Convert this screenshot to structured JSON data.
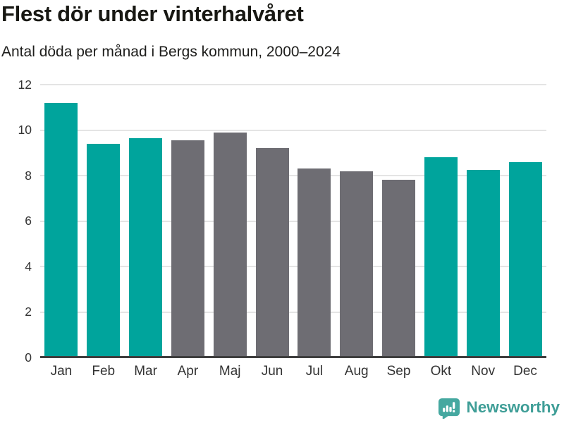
{
  "header": {
    "title": "Flest dör under vinterhalvåret",
    "subtitle": "Antal döda per månad i Bergs kommun, 2000–2024"
  },
  "chart_data": {
    "type": "bar",
    "title": "Flest dör under vinterhalvåret",
    "subtitle": "Antal döda per månad i Bergs kommun, 2000–2024",
    "categories": [
      "Jan",
      "Feb",
      "Mar",
      "Apr",
      "Maj",
      "Jun",
      "Jul",
      "Aug",
      "Sep",
      "Okt",
      "Nov",
      "Dec"
    ],
    "values": [
      11.2,
      9.4,
      9.65,
      9.55,
      9.9,
      9.2,
      8.3,
      8.2,
      7.8,
      8.8,
      8.25,
      8.6
    ],
    "highlighted": [
      true,
      true,
      true,
      false,
      false,
      false,
      false,
      false,
      false,
      true,
      true,
      true
    ],
    "xlabel": "",
    "ylabel": "",
    "ylim": [
      0,
      12
    ],
    "yticks": [
      0,
      2,
      4,
      6,
      8,
      10,
      12
    ],
    "grid": true,
    "legend_position": "none",
    "colors": {
      "highlight_teal": "#00a49c",
      "muted_gray": "#6e6d73",
      "gridline": "#e4e4e4",
      "axis": "#3e3e3e",
      "tick_text": "#333333"
    }
  },
  "footer": {
    "brand": "Newsworthy",
    "brand_color": "#3f9e97"
  }
}
